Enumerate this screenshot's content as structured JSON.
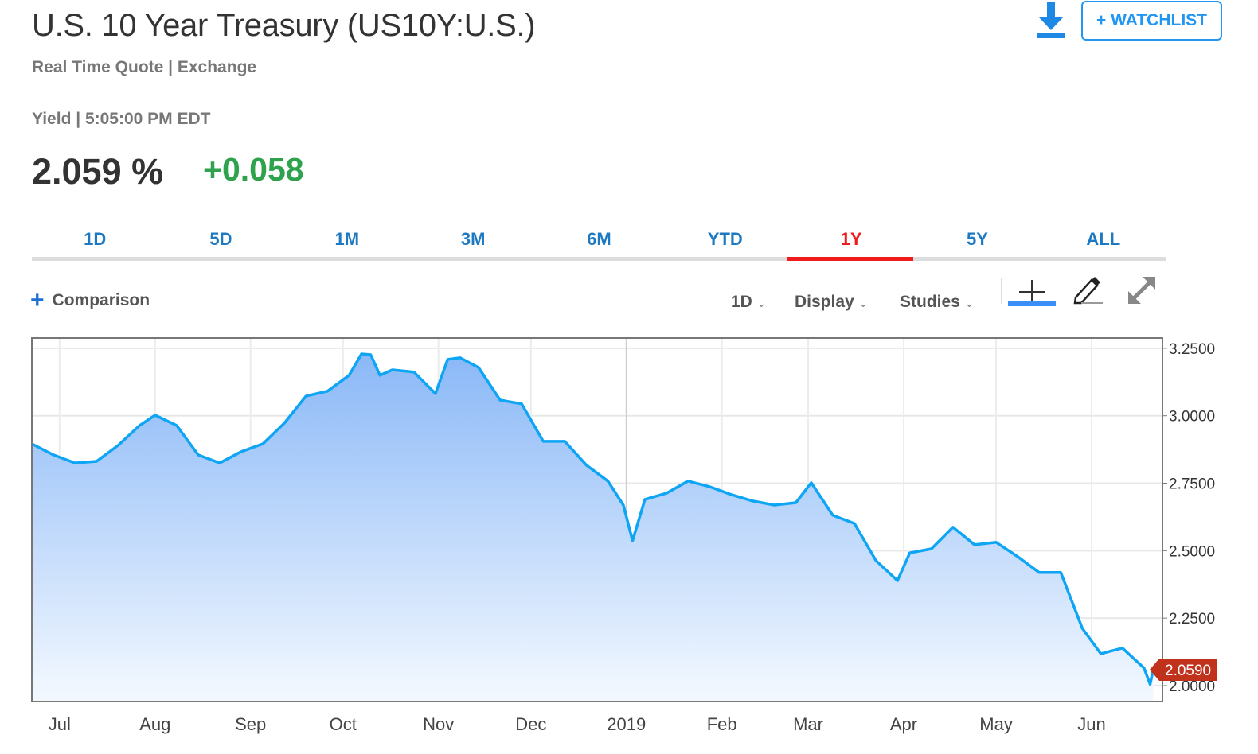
{
  "header": {
    "title": "U.S. 10 Year Treasury (US10Y:U.S.)",
    "subtitle": "Real Time Quote | Exchange",
    "yield_line": "Yield | 5:05:00 PM EDT",
    "price": "2.059 %",
    "change": "+0.058",
    "change_color": "#2ea24c",
    "watchlist_label": "+ WATCHLIST",
    "download_icon": "download-arrow-icon"
  },
  "tabs": [
    {
      "label": "1D"
    },
    {
      "label": "5D"
    },
    {
      "label": "1M"
    },
    {
      "label": "3M"
    },
    {
      "label": "6M"
    },
    {
      "label": "YTD"
    },
    {
      "label": "1Y",
      "active": true
    },
    {
      "label": "5Y"
    },
    {
      "label": "ALL"
    }
  ],
  "toolbar": {
    "comparison_label": "Comparison",
    "interval_label": "1D",
    "display_label": "Display",
    "studies_label": "Studies",
    "icons": [
      "crosshair-icon",
      "pencil-icon",
      "expand-icon"
    ]
  },
  "chart_data": {
    "type": "area",
    "xlim": [
      "2018-06-22",
      "2019-06-24"
    ],
    "ylim": [
      1.941,
      3.288
    ],
    "yticks": [
      "3.2500",
      "3.0000",
      "2.7500",
      "2.5000",
      "2.2500",
      "2.0000"
    ],
    "xticks": [
      {
        "date": "2018-07-01",
        "label": "Jul"
      },
      {
        "date": "2018-08-01",
        "label": "Aug"
      },
      {
        "date": "2018-09-01",
        "label": "Sep"
      },
      {
        "date": "2018-10-01",
        "label": "Oct"
      },
      {
        "date": "2018-11-01",
        "label": "Nov"
      },
      {
        "date": "2018-12-01",
        "label": "Dec"
      },
      {
        "date": "2019-01-01",
        "label": "2019"
      },
      {
        "date": "2019-02-01",
        "label": "Feb"
      },
      {
        "date": "2019-03-01",
        "label": "Mar"
      },
      {
        "date": "2019-04-01",
        "label": "Apr"
      },
      {
        "date": "2019-05-01",
        "label": "May"
      },
      {
        "date": "2019-06-01",
        "label": "Jun"
      }
    ],
    "grid": true,
    "line_color": "#0ea5f5",
    "fill_color": "#8ab8f7",
    "last_value_label": "2.0590",
    "last_value_color": "#c0321c",
    "points": [
      [
        "2018-06-22",
        2.896
      ],
      [
        "2018-06-29",
        2.855
      ],
      [
        "2018-07-06",
        2.825
      ],
      [
        "2018-07-13",
        2.831
      ],
      [
        "2018-07-20",
        2.89
      ],
      [
        "2018-07-27",
        2.964
      ],
      [
        "2018-08-01",
        3.002
      ],
      [
        "2018-08-08",
        2.964
      ],
      [
        "2018-08-15",
        2.855
      ],
      [
        "2018-08-22",
        2.825
      ],
      [
        "2018-08-29",
        2.867
      ],
      [
        "2018-09-05",
        2.896
      ],
      [
        "2018-09-12",
        2.973
      ],
      [
        "2018-09-19",
        3.073
      ],
      [
        "2018-09-26",
        3.091
      ],
      [
        "2018-10-03",
        3.15
      ],
      [
        "2018-10-07",
        3.229
      ],
      [
        "2018-10-10",
        3.226
      ],
      [
        "2018-10-13",
        3.15
      ],
      [
        "2018-10-17",
        3.17
      ],
      [
        "2018-10-24",
        3.162
      ],
      [
        "2018-10-31",
        3.082
      ],
      [
        "2018-11-04",
        3.209
      ],
      [
        "2018-11-08",
        3.215
      ],
      [
        "2018-11-14",
        3.179
      ],
      [
        "2018-11-21",
        3.058
      ],
      [
        "2018-11-28",
        3.044
      ],
      [
        "2018-12-05",
        2.905
      ],
      [
        "2018-12-12",
        2.905
      ],
      [
        "2018-12-19",
        2.817
      ],
      [
        "2018-12-26",
        2.758
      ],
      [
        "2018-12-31",
        2.669
      ],
      [
        "2019-01-03",
        2.537
      ],
      [
        "2019-01-07",
        2.69
      ],
      [
        "2019-01-14",
        2.713
      ],
      [
        "2019-01-21",
        2.758
      ],
      [
        "2019-01-28",
        2.737
      ],
      [
        "2019-02-04",
        2.708
      ],
      [
        "2019-02-11",
        2.684
      ],
      [
        "2019-02-18",
        2.669
      ],
      [
        "2019-02-25",
        2.678
      ],
      [
        "2019-03-02",
        2.752
      ],
      [
        "2019-03-09",
        2.631
      ],
      [
        "2019-03-16",
        2.601
      ],
      [
        "2019-03-23",
        2.463
      ],
      [
        "2019-03-30",
        2.389
      ],
      [
        "2019-04-03",
        2.492
      ],
      [
        "2019-04-10",
        2.507
      ],
      [
        "2019-04-17",
        2.587
      ],
      [
        "2019-04-24",
        2.522
      ],
      [
        "2019-05-01",
        2.531
      ],
      [
        "2019-05-08",
        2.478
      ],
      [
        "2019-05-15",
        2.419
      ],
      [
        "2019-05-22",
        2.419
      ],
      [
        "2019-05-29",
        2.212
      ],
      [
        "2019-06-04",
        2.118
      ],
      [
        "2019-06-11",
        2.139
      ],
      [
        "2019-06-18",
        2.065
      ],
      [
        "2019-06-20",
        2.005
      ],
      [
        "2019-06-21",
        2.059
      ]
    ]
  }
}
